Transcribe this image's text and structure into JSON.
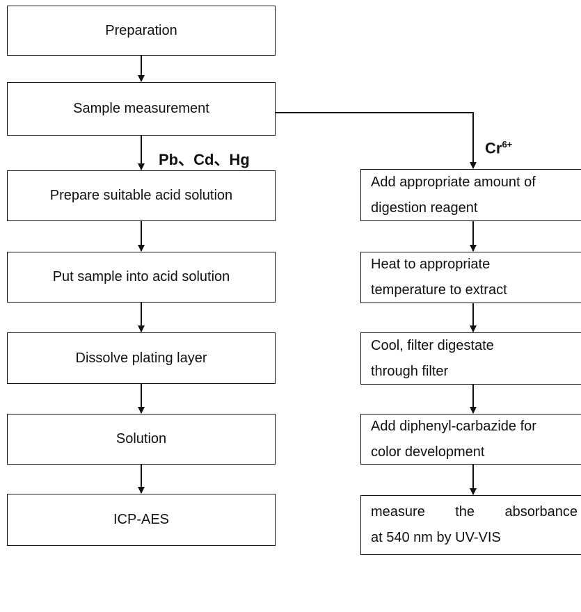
{
  "left_column": {
    "nodes": [
      "Preparation",
      "Sample measurement",
      "Prepare suitable acid solution",
      "Put sample into acid solution",
      "Dissolve plating layer",
      "Solution",
      "ICP-AES"
    ]
  },
  "left_branch_label": "Pb、Cd、Hg",
  "right_branch_label": {
    "text": "Cr",
    "superscript": "6+"
  },
  "right_column": {
    "nodes": [
      {
        "lines": [
          "Add appropriate amount of",
          "digestion reagent"
        ]
      },
      {
        "lines": [
          "Heat to appropriate",
          "temperature to extract"
        ]
      },
      {
        "lines": [
          "Cool, filter digestate",
          "through filter"
        ]
      },
      {
        "lines": [
          "Add diphenyl-carbazide for",
          "color development"
        ]
      },
      {
        "lines": [
          "measure the absorbance",
          "at 540 nm by UV-VIS"
        ]
      }
    ]
  }
}
